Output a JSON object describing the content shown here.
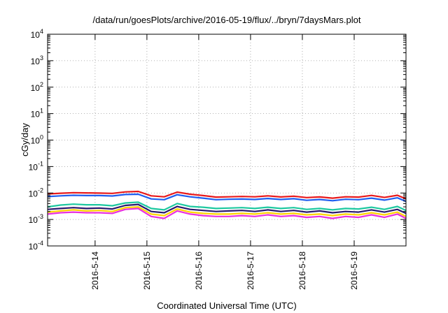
{
  "chart_data": {
    "type": "line",
    "title": "/data/run/goesPlots/archive/2016-05-19/flux/../bryn/7daysMars.plot",
    "xlabel": "Coordinated Universal Time (UTC)",
    "ylabel": "cGy/day",
    "y_scale": "log",
    "ylim": [
      0.0001,
      10000
    ],
    "y_ticks": [
      {
        "value": 0.0001,
        "base": "10",
        "exp": "-4"
      },
      {
        "value": 0.001,
        "base": "10",
        "exp": "-3"
      },
      {
        "value": 0.01,
        "base": "10",
        "exp": "-2"
      },
      {
        "value": 0.1,
        "base": "10",
        "exp": "-1"
      },
      {
        "value": 1,
        "base": "10",
        "exp": "0"
      },
      {
        "value": 10,
        "base": "10",
        "exp": "1"
      },
      {
        "value": 100,
        "base": "10",
        "exp": "2"
      },
      {
        "value": 1000,
        "base": "10",
        "exp": "3"
      },
      {
        "value": 10000,
        "base": "10",
        "exp": "4"
      }
    ],
    "xlim": [
      "2016-05-13T02:00",
      "2016-05-20T00:00"
    ],
    "x_ticks": [
      "2016-5-14",
      "2016-5-15",
      "2016-5-16",
      "2016-5-17",
      "2016-5-18",
      "2016-5-19"
    ],
    "x_tick_dates": [
      "2016-05-14",
      "2016-05-15",
      "2016-05-16",
      "2016-05-17",
      "2016-05-18",
      "2016-05-19"
    ],
    "grid": true,
    "x": [
      "2016-05-13T02:00",
      "2016-05-13T08:00",
      "2016-05-13T14:00",
      "2016-05-13T20:00",
      "2016-05-14T02:00",
      "2016-05-14T08:00",
      "2016-05-14T14:00",
      "2016-05-14T20:00",
      "2016-05-15T02:00",
      "2016-05-15T08:00",
      "2016-05-15T14:00",
      "2016-05-15T20:00",
      "2016-05-16T02:00",
      "2016-05-16T08:00",
      "2016-05-16T14:00",
      "2016-05-16T20:00",
      "2016-05-17T02:00",
      "2016-05-17T08:00",
      "2016-05-17T14:00",
      "2016-05-17T20:00",
      "2016-05-18T02:00",
      "2016-05-18T08:00",
      "2016-05-18T14:00",
      "2016-05-18T20:00",
      "2016-05-19T02:00",
      "2016-05-19T08:00",
      "2016-05-19T14:00",
      "2016-05-19T20:00",
      "2016-05-20T00:00"
    ],
    "series": [
      {
        "color": "#e8191b",
        "values": [
          0.0092,
          0.0098,
          0.0103,
          0.0101,
          0.0099,
          0.0097,
          0.011,
          0.0115,
          0.0078,
          0.0072,
          0.0108,
          0.009,
          0.008,
          0.007,
          0.0072,
          0.0074,
          0.0072,
          0.0078,
          0.0071,
          0.0076,
          0.0067,
          0.0071,
          0.0064,
          0.0072,
          0.007,
          0.0081,
          0.0068,
          0.0082,
          0.006
        ]
      },
      {
        "color": "#1f5ef0",
        "values": [
          0.0073,
          0.0078,
          0.0082,
          0.008,
          0.008,
          0.0077,
          0.0088,
          0.009,
          0.006,
          0.0056,
          0.0086,
          0.0072,
          0.0064,
          0.0056,
          0.0058,
          0.0059,
          0.0057,
          0.0062,
          0.0057,
          0.0061,
          0.0053,
          0.0057,
          0.0051,
          0.0058,
          0.0056,
          0.0064,
          0.0054,
          0.0066,
          0.0048
        ]
      },
      {
        "color": "#1ec8a0",
        "values": [
          0.003,
          0.0035,
          0.0038,
          0.0036,
          0.0036,
          0.0033,
          0.0042,
          0.0045,
          0.0026,
          0.0023,
          0.004,
          0.0031,
          0.0029,
          0.0026,
          0.0027,
          0.0028,
          0.0026,
          0.0029,
          0.0026,
          0.0028,
          0.0024,
          0.0026,
          0.0023,
          0.0026,
          0.0025,
          0.0029,
          0.0024,
          0.0031,
          0.0022
        ]
      },
      {
        "color": "#2a1a6e",
        "values": [
          0.0024,
          0.0026,
          0.0028,
          0.0026,
          0.0027,
          0.0025,
          0.0034,
          0.0037,
          0.002,
          0.0018,
          0.0031,
          0.0024,
          0.0022,
          0.002,
          0.0021,
          0.0022,
          0.002,
          0.0023,
          0.002,
          0.0022,
          0.0019,
          0.0021,
          0.0018,
          0.002,
          0.0019,
          0.0023,
          0.0019,
          0.0024,
          0.0017
        ]
      },
      {
        "color": "#ffd400",
        "values": [
          0.0019,
          0.0021,
          0.0023,
          0.0021,
          0.0022,
          0.002,
          0.0028,
          0.003,
          0.0016,
          0.0014,
          0.0025,
          0.0019,
          0.0017,
          0.0016,
          0.0016,
          0.0017,
          0.0016,
          0.0018,
          0.0016,
          0.0017,
          0.0015,
          0.0016,
          0.0014,
          0.0016,
          0.0015,
          0.0018,
          0.0015,
          0.0019,
          0.0013
        ]
      },
      {
        "color": "#e830e0",
        "values": [
          0.0016,
          0.0018,
          0.0019,
          0.0018,
          0.0018,
          0.0017,
          0.0024,
          0.0026,
          0.0013,
          0.0011,
          0.0021,
          0.0016,
          0.0014,
          0.0013,
          0.0013,
          0.0014,
          0.0013,
          0.0015,
          0.0013,
          0.0014,
          0.0012,
          0.0013,
          0.0011,
          0.0013,
          0.0012,
          0.0015,
          0.0012,
          0.0016,
          0.0011
        ]
      }
    ]
  }
}
